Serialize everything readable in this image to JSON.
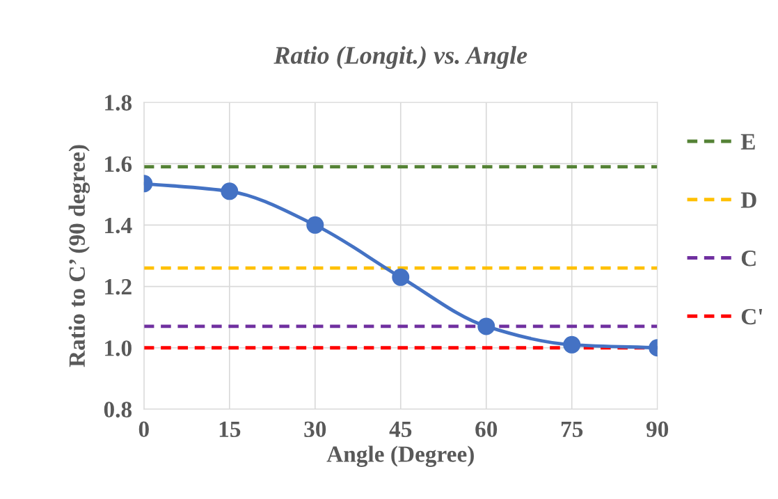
{
  "chart_data": {
    "type": "line",
    "title": "Ratio (Longit.) vs. Angle",
    "xlabel": "Angle (Degree)",
    "ylabel": "Ratio to C’ (90 degree)",
    "x": [
      0,
      15,
      30,
      45,
      60,
      75,
      90
    ],
    "series": [
      {
        "color": "#4472c4",
        "values": [
          1.535,
          1.51,
          1.4,
          1.23,
          1.07,
          1.01,
          1.0
        ],
        "marker": "circle",
        "line_style": "solid"
      }
    ],
    "ref_lines": [
      {
        "axis": "y",
        "value": 1.59,
        "label": "E",
        "color": "#548235",
        "line_style": "dashed"
      },
      {
        "axis": "y",
        "value": 1.26,
        "label": "D",
        "color": "#ffc000",
        "line_style": "dashed"
      },
      {
        "axis": "y",
        "value": 1.07,
        "label": "C",
        "color": "#7030a0",
        "line_style": "dashed"
      },
      {
        "axis": "y",
        "value": 1.0,
        "label": "C'",
        "color": "#ff0000",
        "line_style": "dashed"
      }
    ],
    "xlim": [
      0,
      90
    ],
    "xticks": [
      0,
      15,
      30,
      45,
      60,
      75,
      90
    ],
    "ylim": [
      0.8,
      1.8
    ],
    "yticks": [
      {
        "value": 0.8,
        "label": "0.8"
      },
      {
        "value": 1.0,
        "label": "1.0"
      },
      {
        "value": 1.2,
        "label": "1.2"
      },
      {
        "value": 1.4,
        "label": "1.4"
      },
      {
        "value": 1.6,
        "label": "1.6"
      },
      {
        "value": 1.8,
        "label": "1.8"
      }
    ],
    "grid": true,
    "legend": "right"
  }
}
